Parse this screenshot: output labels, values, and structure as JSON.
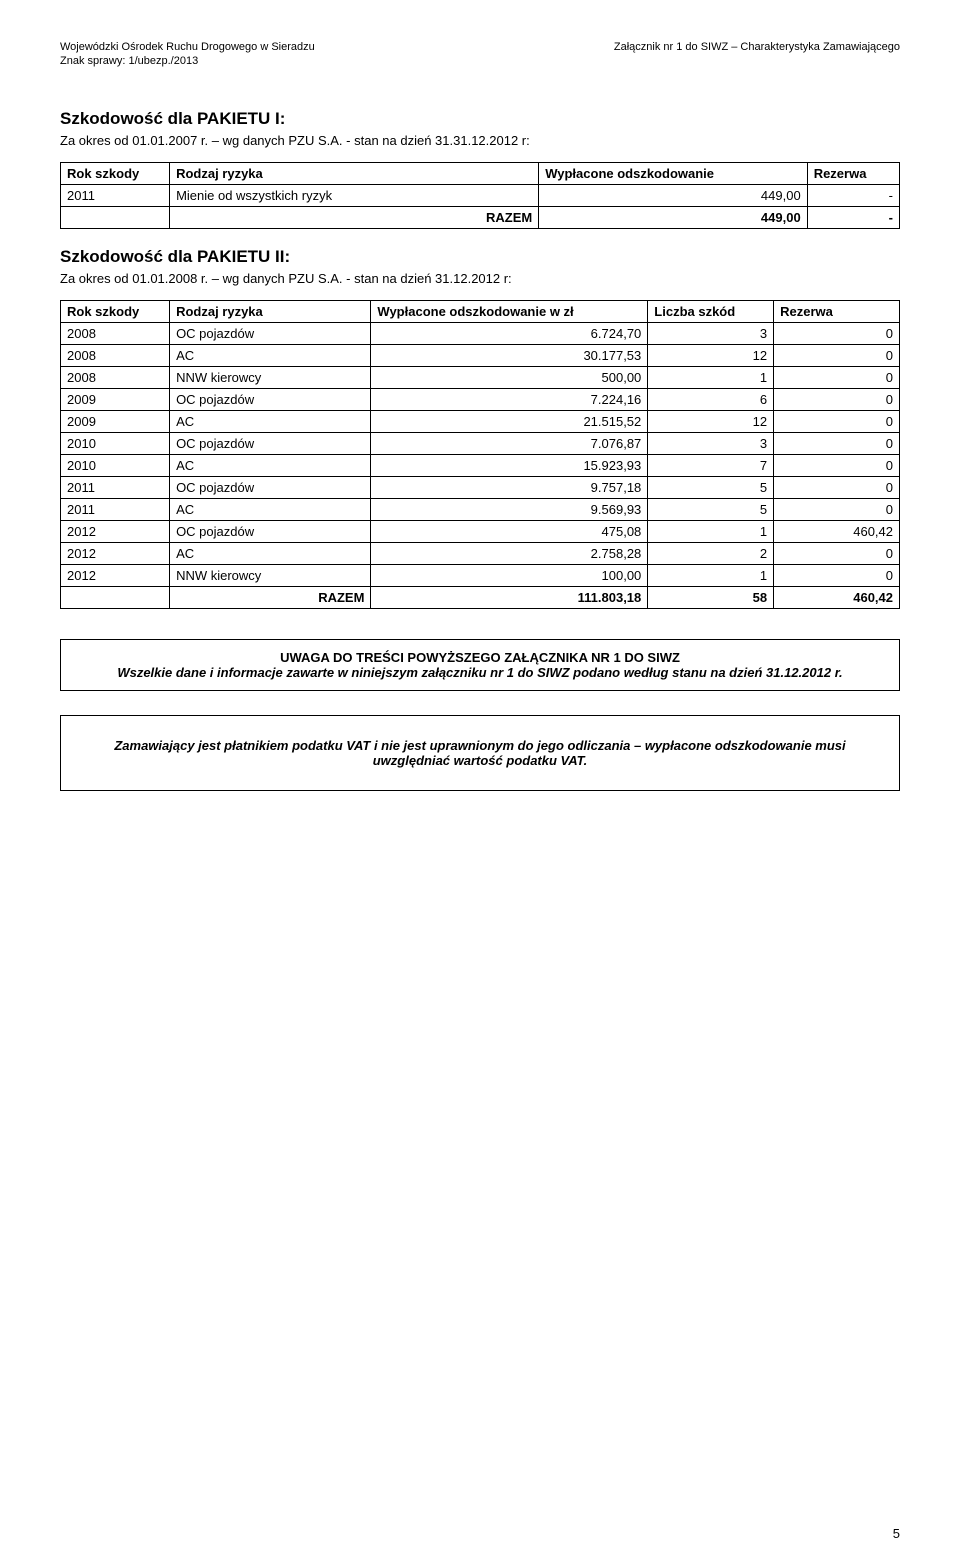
{
  "header": {
    "left_line1": "Wojewódzki Ośrodek Ruchu Drogowego w Sieradzu",
    "left_line2": "Znak sprawy: 1/ubezp./2013",
    "right_line1": "Załącznik nr 1 do SIWZ – Charakterystyka Zamawiającego"
  },
  "section1": {
    "title": "Szkodowość dla PAKIETU I:",
    "subline": "Za okres od 01.01.2007 r. – wg danych PZU  S.A. - stan na dzień 31.31.12.2012 r:",
    "table": {
      "headers": [
        "Rok szkody",
        "Rodzaj ryzyka",
        "Wypłacone odszkodowanie",
        "Rezerwa"
      ],
      "rows": [
        [
          "2011",
          "Mienie od wszystkich ryzyk",
          "449,00",
          "-"
        ]
      ],
      "sum_label": "RAZEM",
      "sum_value": "449,00",
      "sum_reserve": "-"
    }
  },
  "section2": {
    "title": "Szkodowość dla PAKIETU II:",
    "subline": "Za okres od 01.01.2008 r. – wg danych PZU  S.A. - stan na dzień 31.12.2012 r:",
    "table": {
      "headers": [
        "Rok szkody",
        "Rodzaj ryzyka",
        "Wypłacone odszkodowanie w zł",
        "Liczba szkód",
        "Rezerwa"
      ],
      "rows": [
        [
          "2008",
          "OC pojazdów",
          "6.724,70",
          "3",
          "0"
        ],
        [
          "2008",
          "AC",
          "30.177,53",
          "12",
          "0"
        ],
        [
          "2008",
          "NNW kierowcy",
          "500,00",
          "1",
          "0"
        ],
        [
          "2009",
          "OC pojazdów",
          "7.224,16",
          "6",
          "0"
        ],
        [
          "2009",
          "AC",
          "21.515,52",
          "12",
          "0"
        ],
        [
          "2010",
          "OC pojazdów",
          "7.076,87",
          "3",
          "0"
        ],
        [
          "2010",
          "AC",
          "15.923,93",
          "7",
          "0"
        ],
        [
          "2011",
          "OC pojazdów",
          "9.757,18",
          "5",
          "0"
        ],
        [
          "2011",
          "AC",
          "9.569,93",
          "5",
          "0"
        ],
        [
          "2012",
          "OC pojazdów",
          "475,08",
          "1",
          "460,42"
        ],
        [
          "2012",
          "AC",
          "2.758,28",
          "2",
          "0"
        ],
        [
          "2012",
          "NNW kierowcy",
          "100,00",
          "1",
          "0"
        ]
      ],
      "sum_label": "RAZEM",
      "sum_payout": "111.803,18",
      "sum_count": "58",
      "sum_reserve": "460,42"
    }
  },
  "notice1": {
    "title": "UWAGA DO TREŚCI POWYŻSZEGO ZAŁĄCZNIKA NR 1 DO SIWZ",
    "body": "Wszelkie dane i informacje zawarte w niniejszym załączniku nr 1 do SIWZ podano według stanu na dzień 31.12.2012 r."
  },
  "notice2": {
    "body": "Zamawiający  jest płatnikiem podatku VAT i  nie jest uprawnionym do jego odliczania – wypłacone odszkodowanie musi uwzględniać wartość podatku VAT."
  },
  "page_number": "5"
}
